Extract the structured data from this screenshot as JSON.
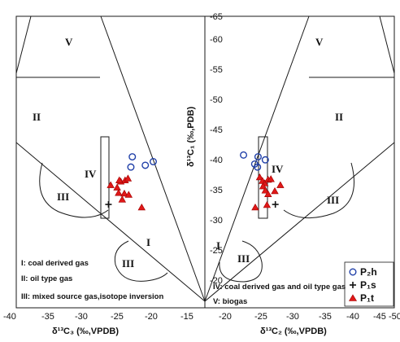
{
  "chart_data": {
    "type": "scatter",
    "left_panel": {
      "xlabel": "δ¹³C₃ (‰,VPDB)",
      "x_ticks": [
        "-40",
        "-35",
        "-30",
        "-25",
        "-20",
        "-15"
      ],
      "xlim": [
        -40,
        -15
      ]
    },
    "right_panel": {
      "xlabel": "δ¹³C₂ (‰,VPDB)",
      "x_ticks": [
        "-20",
        "-25",
        "-30",
        "-35",
        "-40",
        "-45",
        "-50"
      ],
      "xlim": [
        -15,
        -50
      ]
    },
    "y_axis": {
      "label": "δ¹³C₁ (‰,PDB)",
      "ticks": [
        "-65",
        "-60",
        "-55",
        "-50",
        "-45",
        "-40",
        "-35",
        "-30",
        "-25",
        "-20"
      ],
      "ylim": [
        -18,
        -66
      ]
    },
    "zone_labels": {
      "left": [
        "V",
        "II",
        "IV",
        "III",
        "I",
        "III"
      ],
      "right": [
        "V",
        "II",
        "IV",
        "III",
        "I",
        "III"
      ]
    },
    "annotations": [
      "I: coal derived gas",
      "II: oil type gas",
      "III: mixed source gas,isotope inversion",
      "IV: coal derived gas and oil type gas",
      "V: biogas"
    ],
    "legend": [
      "P₂h",
      "P₁s",
      "P₁t"
    ],
    "series": [
      {
        "name": "P₂h",
        "left_points": [
          [
            -22.8,
            -41.0
          ],
          [
            -23.0,
            -39.3
          ],
          [
            -21.0,
            -39.6
          ],
          [
            -19.9,
            -40.2
          ]
        ],
        "right_points": [
          [
            -22.7,
            -41.3
          ],
          [
            -24.7,
            -39.8
          ],
          [
            -25.2,
            -39.3
          ],
          [
            -25.3,
            -41.0
          ],
          [
            -26.6,
            -40.5
          ]
        ]
      },
      {
        "name": "P₁s",
        "left_points": [
          [
            -26.1,
            -33.1
          ]
        ],
        "right_points": [
          [
            -28.4,
            -33.1
          ]
        ]
      },
      {
        "name": "P₁t",
        "left_points": [
          [
            -25.8,
            -36.3
          ],
          [
            -24.9,
            -35.9
          ],
          [
            -24.4,
            -36.9
          ],
          [
            -23.8,
            -37.1
          ],
          [
            -23.4,
            -37.4
          ],
          [
            -24.6,
            -37.1
          ],
          [
            -24.7,
            -35.0
          ],
          [
            -23.9,
            -34.9
          ],
          [
            -24.2,
            -33.9
          ],
          [
            -23.3,
            -34.7
          ],
          [
            -21.5,
            -32.6
          ]
        ],
        "right_points": [
          [
            -25.6,
            -37.6
          ],
          [
            -26.1,
            -37.0
          ],
          [
            -26.5,
            -36.6
          ],
          [
            -27.1,
            -37.2
          ],
          [
            -27.6,
            -37.3
          ],
          [
            -26.2,
            -36.1
          ],
          [
            -26.6,
            -35.4
          ],
          [
            -27.1,
            -34.8
          ],
          [
            -26.9,
            -33.0
          ],
          [
            -28.3,
            -35.3
          ],
          [
            -29.3,
            -36.3
          ],
          [
            -24.8,
            -32.6
          ]
        ]
      }
    ]
  },
  "colors": {
    "P2h": "#1f3fa8",
    "P1s": "#111111",
    "P1t": "#e01818",
    "lines": "#1a1a1a"
  }
}
